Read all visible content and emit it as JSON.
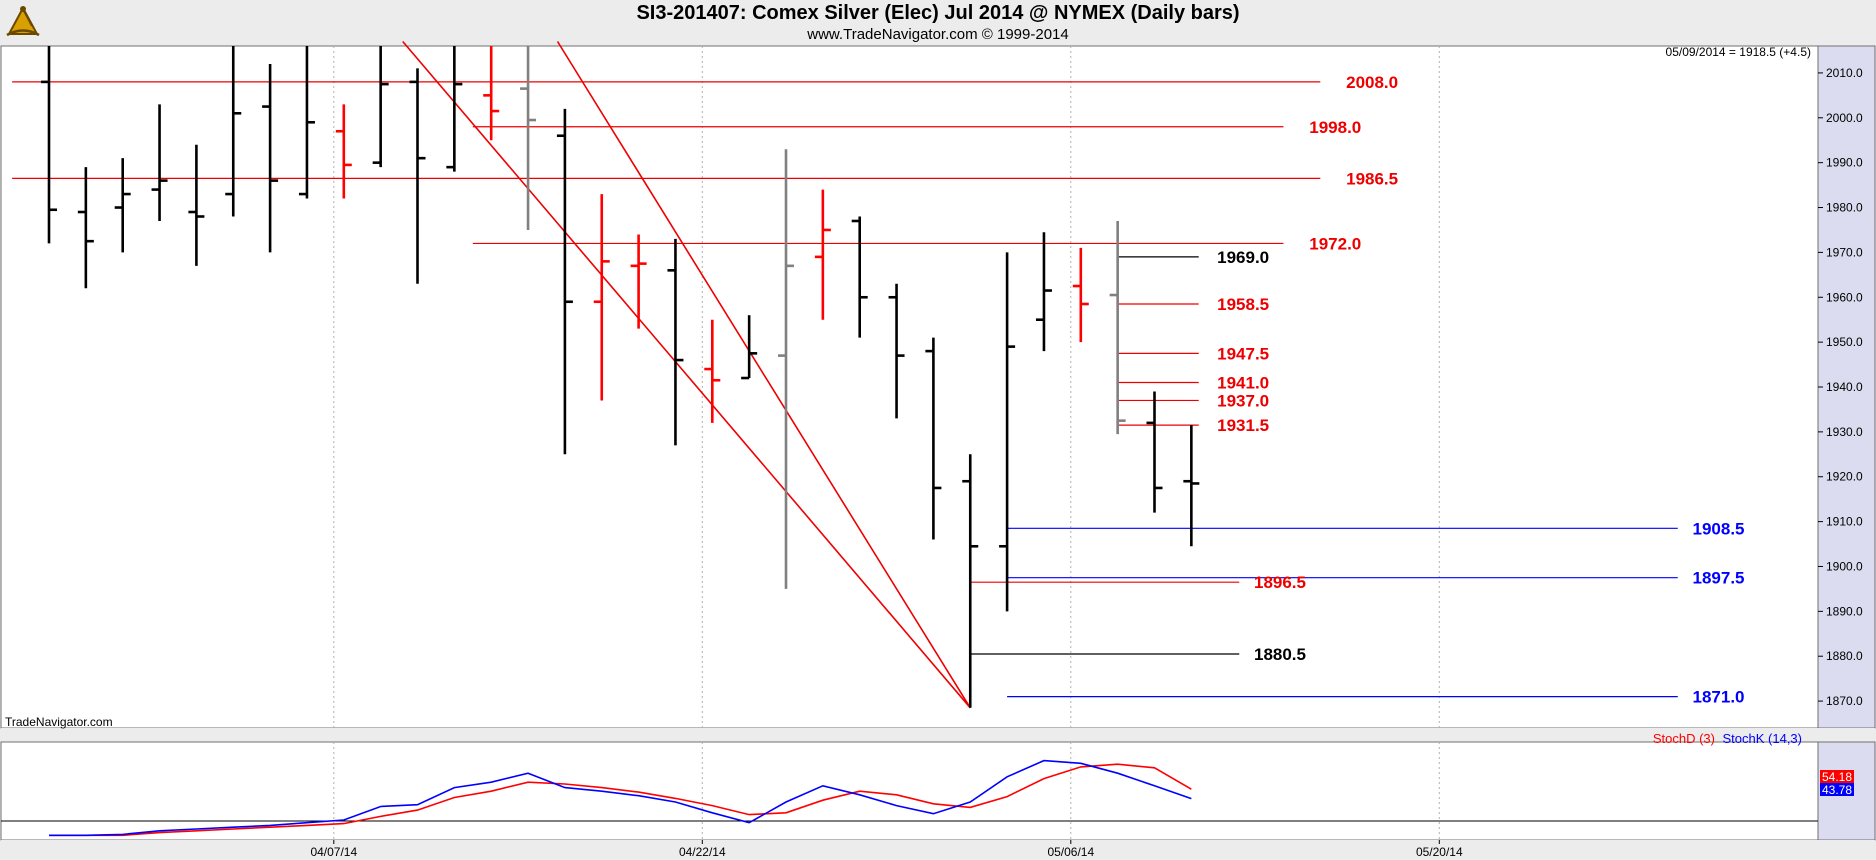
{
  "header": {
    "title": "SI3-201407:  Comex Silver (Elec) Jul 2014 @ NYMEX  (Daily bars)",
    "subtitle": "www.TradeNavigator.com © 1999-2014"
  },
  "watermark": "TradeNavigator.com",
  "last_info": {
    "date": "05/09/2014",
    "text": " = 1918.5 (+4.5)"
  },
  "colors": {
    "bar_black": "#000000",
    "bar_red": "#ff0000",
    "bar_gray": "#808080",
    "bar_green": "#00cc00",
    "level_red": "#ee0000",
    "level_blue": "#0000ff",
    "level_black": "#000000",
    "stoch_d": "#ff0000",
    "stoch_k": "#0000ff",
    "panel_bg": "#ffffff",
    "axis_bg": "#dcdcf0"
  },
  "chart_data": {
    "type": "ohlc",
    "ylim": [
      1864,
      2016
    ],
    "yticks": [
      1870,
      1880,
      1890,
      1900,
      1910,
      1920,
      1930,
      1940,
      1950,
      1960,
      1970,
      1980,
      1990,
      2000,
      2010
    ],
    "xticks": [
      {
        "label": "04/07/14",
        "index": 8
      },
      {
        "label": "04/22/14",
        "index": 18
      },
      {
        "label": "05/06/14",
        "index": 28
      },
      {
        "label": "05/20/14",
        "index": 38
      }
    ],
    "bars": [
      {
        "i": 0,
        "o": 2008,
        "h": 2018,
        "l": 1972,
        "c": 1979.5,
        "color": "black"
      },
      {
        "i": 1,
        "o": 1979,
        "h": 1989,
        "l": 1962,
        "c": 1972.5,
        "color": "black"
      },
      {
        "i": 2,
        "o": 1980,
        "h": 1991,
        "l": 1970,
        "c": 1983,
        "color": "black"
      },
      {
        "i": 3,
        "o": 1984,
        "h": 2003,
        "l": 1977,
        "c": 1986,
        "color": "black"
      },
      {
        "i": 4,
        "o": 1979,
        "h": 1994,
        "l": 1967,
        "c": 1978,
        "color": "black"
      },
      {
        "i": 5,
        "o": 1983,
        "h": 2018,
        "l": 1978,
        "c": 2001,
        "color": "black"
      },
      {
        "i": 6,
        "o": 2002.5,
        "h": 2012,
        "l": 1970,
        "c": 1986,
        "color": "black"
      },
      {
        "i": 7,
        "o": 1983,
        "h": 2018,
        "l": 1982,
        "c": 1999,
        "color": "black"
      },
      {
        "i": 8,
        "o": 1997,
        "h": 2003,
        "l": 1982,
        "c": 1989.5,
        "color": "red"
      },
      {
        "i": 9,
        "o": 1990,
        "h": 2018,
        "l": 1989,
        "c": 2007.5,
        "color": "black"
      },
      {
        "i": 10,
        "o": 2008,
        "h": 2011,
        "l": 1963,
        "c": 1991,
        "color": "black"
      },
      {
        "i": 11,
        "o": 1989,
        "h": 2018,
        "l": 1988,
        "c": 2007.5,
        "color": "black"
      },
      {
        "i": 12,
        "o": 2005,
        "h": 2018,
        "l": 1995,
        "c": 2001.5,
        "color": "red"
      },
      {
        "i": 13,
        "o": 2006.5,
        "h": 2018,
        "l": 1975,
        "c": 1999.5,
        "color": "gray"
      },
      {
        "i": 14,
        "o": 1996,
        "h": 2002,
        "l": 1925,
        "c": 1959,
        "color": "black"
      },
      {
        "i": 15,
        "o": 1959,
        "h": 1983,
        "l": 1937,
        "c": 1968,
        "color": "red"
      },
      {
        "i": 16,
        "o": 1967,
        "h": 1974,
        "l": 1953,
        "c": 1967.5,
        "color": "red"
      },
      {
        "i": 17,
        "o": 1966,
        "h": 1973,
        "l": 1927,
        "c": 1946,
        "color": "black"
      },
      {
        "i": 18,
        "o": 1944,
        "h": 1955,
        "l": 1932,
        "c": 1941.5,
        "color": "red"
      },
      {
        "i": 19,
        "o": 1942,
        "h": 1956,
        "l": 1942,
        "c": 1947.5,
        "color": "black"
      },
      {
        "i": 20,
        "o": 1947,
        "h": 1993,
        "l": 1895,
        "c": 1967,
        "color": "gray"
      },
      {
        "i": 21,
        "o": 1969,
        "h": 1984,
        "l": 1955,
        "c": 1975,
        "color": "red"
      },
      {
        "i": 22,
        "o": 1977,
        "h": 1978,
        "l": 1951,
        "c": 1960,
        "color": "black"
      },
      {
        "i": 23,
        "o": 1960,
        "h": 1963,
        "l": 1933,
        "c": 1947,
        "color": "black"
      },
      {
        "i": 24,
        "o": 1948,
        "h": 1951,
        "l": 1906,
        "c": 1917.5,
        "color": "black"
      },
      {
        "i": 25,
        "o": 1919,
        "h": 1925,
        "l": 1868.5,
        "c": 1904.5,
        "color": "black"
      },
      {
        "i": 26,
        "o": 1904.5,
        "h": 1970,
        "l": 1890,
        "c": 1949,
        "color": "black"
      },
      {
        "i": 27,
        "o": 1955,
        "h": 1974.5,
        "l": 1948,
        "c": 1961.5,
        "color": "black"
      },
      {
        "i": 28,
        "o": 1962.5,
        "h": 1971,
        "l": 1950,
        "c": 1958.5,
        "color": "red"
      },
      {
        "i": 29,
        "o": 1960.5,
        "h": 1977,
        "l": 1929.5,
        "c": 1932.5,
        "color": "gray"
      },
      {
        "i": 30,
        "o": 1932,
        "h": 1939,
        "l": 1912,
        "c": 1917.5,
        "color": "black"
      },
      {
        "i": 31,
        "o": 1919,
        "h": 1931.5,
        "l": 1904.5,
        "c": 1918.5,
        "color": "black"
      }
    ],
    "trendlines": [
      {
        "from": {
          "i": 9.6,
          "v": 2017
        },
        "to": {
          "i": 25,
          "v": 1868.5
        }
      },
      {
        "from": {
          "i": 13.8,
          "v": 2017
        },
        "to": {
          "i": 25,
          "v": 1868.5
        }
      }
    ],
    "levels": [
      {
        "value": 2008.0,
        "label": "2008.0",
        "color": "red",
        "from_i": -1,
        "to_i": 34.5,
        "label_i": 35.2
      },
      {
        "value": 1998.0,
        "label": "1998.0",
        "color": "red",
        "from_i": 11.5,
        "to_i": 33.5,
        "label_i": 34.2
      },
      {
        "value": 1986.5,
        "label": "1986.5",
        "color": "red",
        "from_i": -1,
        "to_i": 34.5,
        "label_i": 35.2
      },
      {
        "value": 1972.0,
        "label": "1972.0",
        "color": "red",
        "from_i": 11.5,
        "to_i": 33.5,
        "label_i": 34.2
      },
      {
        "value": 1969.0,
        "label": "1969.0",
        "color": "black",
        "from_i": 29,
        "to_i": 31.2,
        "label_i": 31.7
      },
      {
        "value": 1958.5,
        "label": "1958.5",
        "color": "red",
        "from_i": 29,
        "to_i": 31.2,
        "label_i": 31.7
      },
      {
        "value": 1947.5,
        "label": "1947.5",
        "color": "red",
        "from_i": 29,
        "to_i": 31.2,
        "label_i": 31.7
      },
      {
        "value": 1941.0,
        "label": "1941.0",
        "color": "red",
        "from_i": 29,
        "to_i": 31.2,
        "label_i": 31.7
      },
      {
        "value": 1937.0,
        "label": "1937.0",
        "color": "red",
        "from_i": 29,
        "to_i": 31.2,
        "label_i": 31.7
      },
      {
        "value": 1931.5,
        "label": "1931.5",
        "color": "red",
        "from_i": 29,
        "to_i": 31.2,
        "label_i": 31.7
      },
      {
        "value": 1908.5,
        "label": "1908.5",
        "color": "blue",
        "from_i": 26,
        "to_i": 44.2,
        "label_i": 44.6
      },
      {
        "value": 1897.5,
        "label": "1897.5",
        "color": "blue",
        "from_i": 26,
        "to_i": 44.2,
        "label_i": 44.6
      },
      {
        "value": 1896.5,
        "label": "1896.5",
        "color": "red",
        "from_i": 25,
        "to_i": 32.3,
        "label_i": 32.7
      },
      {
        "value": 1880.5,
        "label": "1880.5",
        "color": "black",
        "from_i": 25,
        "to_i": 32.3,
        "label_i": 32.7
      },
      {
        "value": 1871.0,
        "label": "1871.0",
        "color": "blue",
        "from_i": 26,
        "to_i": 44.2,
        "label_i": 44.6
      }
    ],
    "stoch": {
      "legend_d": "StochD (3)",
      "legend_k": "StochK (14,3)",
      "ylim": [
        0,
        100
      ],
      "last_d": "54.18",
      "last_k": "43.78",
      "x": [
        0,
        1,
        2,
        3,
        4,
        5,
        6,
        7,
        8,
        9,
        10,
        11,
        12,
        13,
        14,
        15,
        16,
        17,
        18,
        19,
        20,
        21,
        22,
        23,
        24,
        25,
        26,
        27,
        28,
        29,
        30,
        31
      ],
      "k": [
        3,
        3,
        4,
        8,
        10,
        12,
        14,
        17,
        20,
        35,
        37,
        56,
        62,
        72,
        56,
        52,
        47,
        40,
        28,
        17,
        40,
        58,
        48,
        36,
        27,
        40,
        68,
        86,
        83,
        72,
        58,
        43.78
      ],
      "d": [
        3,
        3,
        3,
        6,
        8,
        10,
        12,
        14,
        16,
        24,
        31,
        45,
        52,
        62,
        60,
        56,
        51,
        44,
        36,
        26,
        28,
        42,
        52,
        48,
        38,
        34,
        46,
        66,
        79,
        82,
        78,
        54.18
      ]
    }
  }
}
